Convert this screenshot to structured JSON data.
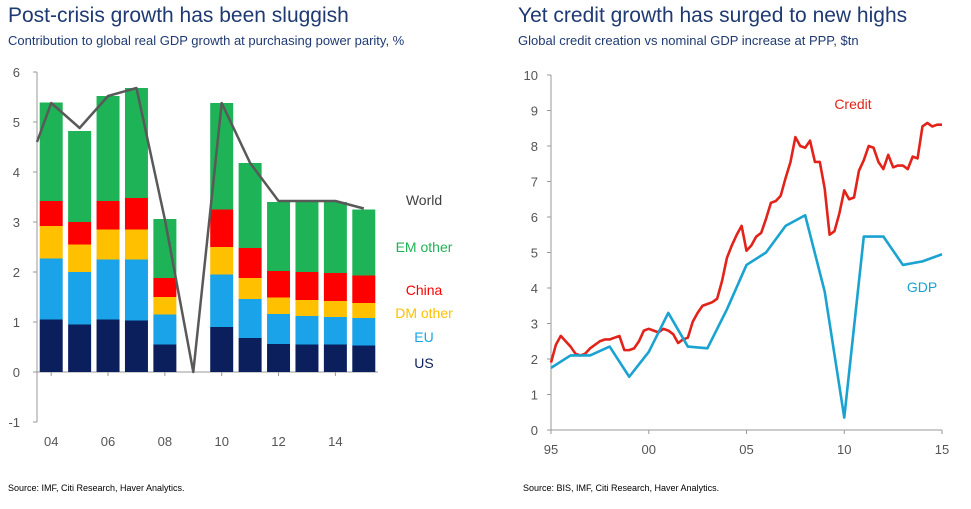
{
  "left": {
    "title": "Post-crisis growth has been sluggish",
    "subtitle": "Contribution to global real GDP growth at purchasing power parity, %",
    "source": "Source: IMF, Citi Research, Haver Analytics."
  },
  "right": {
    "title": "Yet credit growth has surged to new highs",
    "subtitle": "Global credit creation vs nominal GDP increase at PPP, $tn",
    "source": "Source: BIS, IMF, Citi Research, Haver Analytics."
  },
  "chart_data": [
    {
      "type": "bar",
      "stacked": true,
      "title": "Post-crisis growth has been sluggish",
      "subtitle": "Contribution to global real GDP growth at purchasing power parity, %",
      "x": [
        2004,
        2005,
        2006,
        2007,
        2008,
        2009,
        2010,
        2011,
        2012,
        2013,
        2014,
        2015
      ],
      "tick_labels": [
        "04",
        "06",
        "08",
        "10",
        "12",
        "14"
      ],
      "tick_years": [
        2004,
        2006,
        2008,
        2010,
        2012,
        2014
      ],
      "ylim": [
        -1,
        6
      ],
      "yticks": [
        -1,
        0,
        1,
        2,
        3,
        4,
        5,
        6
      ],
      "grid": false,
      "legend_position": "right",
      "series": [
        {
          "name": "US",
          "color": "#0b1f5c",
          "values": [
            1.05,
            0.95,
            1.05,
            1.03,
            0.55,
            0,
            0.9,
            0.68,
            0.56,
            0.55,
            0.55,
            0.53
          ]
        },
        {
          "name": "EU",
          "color": "#1aa3e8",
          "values": [
            1.22,
            1.05,
            1.2,
            1.22,
            0.6,
            0,
            1.05,
            0.78,
            0.6,
            0.57,
            0.55,
            0.55
          ]
        },
        {
          "name": "DM other",
          "color": "#ffc000",
          "values": [
            0.65,
            0.55,
            0.6,
            0.6,
            0.35,
            0,
            0.55,
            0.42,
            0.33,
            0.32,
            0.32,
            0.3
          ]
        },
        {
          "name": "China",
          "color": "#ff0000",
          "values": [
            0.5,
            0.45,
            0.57,
            0.63,
            0.38,
            0,
            0.75,
            0.6,
            0.53,
            0.56,
            0.56,
            0.55
          ]
        },
        {
          "name": "EM other",
          "color": "#1fb357",
          "values": [
            1.97,
            1.82,
            2.1,
            2.2,
            1.18,
            0,
            2.13,
            1.7,
            1.38,
            1.4,
            1.42,
            1.32
          ]
        }
      ],
      "line": {
        "name": "World",
        "color": "#595959",
        "x": [
          2003.5,
          2004,
          2005,
          2006,
          2007,
          2008,
          2009,
          2010,
          2011,
          2012,
          2013,
          2014,
          2015
        ],
        "values": [
          4.6,
          5.38,
          4.88,
          5.52,
          5.68,
          3.05,
          0,
          5.38,
          4.18,
          3.42,
          3.42,
          3.42,
          3.27
        ]
      },
      "legend": [
        {
          "label": "World",
          "color": "#404040"
        },
        {
          "label": "EM other",
          "color": "#1fb357"
        },
        {
          "label": "China",
          "color": "#ff0000"
        },
        {
          "label": "DM other",
          "color": "#ffc000"
        },
        {
          "label": "EU",
          "color": "#1aa3e8"
        },
        {
          "label": "US",
          "color": "#0b1f5c"
        }
      ]
    },
    {
      "type": "line",
      "title": "Yet credit growth has surged to new highs",
      "subtitle": "Global credit creation vs nominal GDP increase at PPP, $tn",
      "xlim": [
        1995,
        2015
      ],
      "xticks": [
        1995,
        2000,
        2005,
        2010,
        2015
      ],
      "tick_labels": [
        "95",
        "00",
        "05",
        "10",
        "15"
      ],
      "ylim": [
        0,
        10
      ],
      "yticks": [
        0,
        1,
        2,
        3,
        4,
        5,
        6,
        7,
        8,
        9,
        10
      ],
      "grid": false,
      "series": [
        {
          "name": "Credit",
          "color": "#e2231a",
          "x": [
            1995,
            1995.25,
            1995.5,
            1995.75,
            1996,
            1996.25,
            1996.5,
            1996.75,
            1997,
            1997.25,
            1997.5,
            1997.75,
            1998,
            1998.25,
            1998.5,
            1998.75,
            1999,
            1999.25,
            1999.5,
            1999.75,
            2000,
            2000.25,
            2000.5,
            2000.75,
            2001,
            2001.25,
            2001.5,
            2001.75,
            2002,
            2002.25,
            2002.5,
            2002.75,
            2003,
            2003.25,
            2003.5,
            2003.75,
            2004,
            2004.25,
            2004.5,
            2004.75,
            2005,
            2005.25,
            2005.5,
            2005.75,
            2006,
            2006.25,
            2006.5,
            2006.75,
            2007,
            2007.25,
            2007.5,
            2007.75,
            2008,
            2008.25,
            2008.5,
            2008.75,
            2009,
            2009.25,
            2009.5,
            2009.75,
            2010,
            2010.25,
            2010.5,
            2010.75,
            2011,
            2011.25,
            2011.5,
            2011.75,
            2012,
            2012.25,
            2012.5,
            2012.75,
            2013,
            2013.25,
            2013.5,
            2013.75,
            2014,
            2014.25,
            2014.5,
            2014.75,
            2015
          ],
          "values": [
            1.9,
            2.4,
            2.65,
            2.5,
            2.35,
            2.15,
            2.1,
            2.15,
            2.3,
            2.4,
            2.5,
            2.55,
            2.55,
            2.6,
            2.65,
            2.25,
            2.25,
            2.3,
            2.5,
            2.8,
            2.85,
            2.8,
            2.75,
            2.85,
            2.8,
            2.7,
            2.45,
            2.55,
            2.6,
            3.05,
            3.3,
            3.5,
            3.55,
            3.6,
            3.7,
            4.2,
            4.85,
            5.2,
            5.5,
            5.75,
            5.05,
            5.2,
            5.45,
            5.55,
            5.95,
            6.4,
            6.45,
            6.6,
            7.1,
            7.55,
            8.25,
            8.0,
            7.95,
            8.15,
            7.55,
            7.55,
            6.8,
            5.5,
            5.6,
            6.1,
            6.75,
            6.5,
            6.55,
            7.3,
            7.6,
            8.0,
            7.95,
            7.55,
            7.35,
            7.75,
            7.4,
            7.45,
            7.45,
            7.35,
            7.7,
            7.65,
            8.55,
            8.65,
            8.55,
            8.6,
            8.6
          ]
        },
        {
          "name": "GDP",
          "color": "#1aa3d1",
          "x": [
            1995,
            1996,
            1997,
            1998,
            1999,
            2000,
            2001,
            2002,
            2003,
            2004,
            2005,
            2006,
            2007,
            2008,
            2009,
            2010,
            2011,
            2012,
            2013,
            2014,
            2015
          ],
          "values": [
            1.75,
            2.1,
            2.1,
            2.35,
            1.5,
            2.2,
            3.3,
            2.35,
            2.3,
            3.4,
            4.65,
            5.0,
            5.75,
            6.05,
            3.9,
            0.35,
            5.45,
            5.45,
            4.65,
            4.75,
            4.95
          ]
        }
      ],
      "annotations": [
        {
          "label": "Credit",
          "color": "#e2231a"
        },
        {
          "label": "GDP",
          "color": "#1aa3d1"
        }
      ]
    }
  ]
}
